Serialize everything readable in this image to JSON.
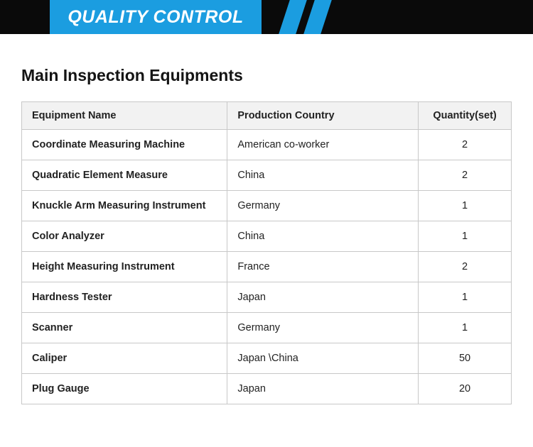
{
  "colors": {
    "accent": "#1b9de0",
    "banner_bg": "#0a0a0a"
  },
  "banner": {
    "title": "QUALITY CONTROL"
  },
  "section": {
    "heading": "Main Inspection Equipments"
  },
  "table": {
    "headers": [
      "Equipment Name",
      "Production Country",
      "Quantity(set)"
    ],
    "rows": [
      [
        "Coordinate Measuring Machine",
        "American co-worker",
        "2"
      ],
      [
        "Quadratic Element Measure",
        "China",
        "2"
      ],
      [
        "Knuckle Arm Measuring Instrument",
        "Germany",
        "1"
      ],
      [
        "Color Analyzer",
        "China",
        "1"
      ],
      [
        "Height Measuring Instrument",
        "France",
        "2"
      ],
      [
        "Hardness Tester",
        "Japan",
        "1"
      ],
      [
        "Scanner",
        "Germany",
        "1"
      ],
      [
        "Caliper",
        "Japan \\China",
        "50"
      ],
      [
        "Plug Gauge",
        "Japan",
        "20"
      ]
    ]
  }
}
